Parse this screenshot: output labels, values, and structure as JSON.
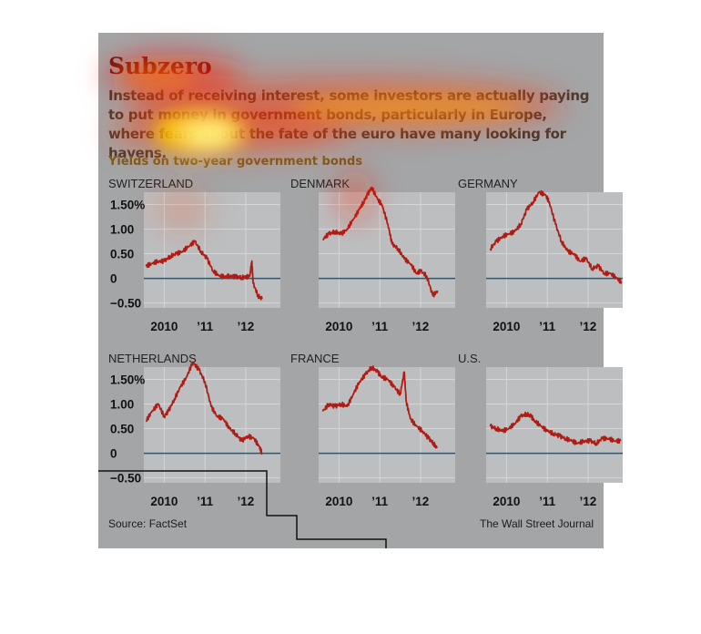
{
  "title": "Subzero",
  "description": "Instead of receiving interest, some investors are actually paying to put money in government bonds, particularly in Europe, where fears about the fate of the euro have many looking for havens.",
  "subtitle": "Yields on two-year government bonds",
  "source": "Source: FactSet",
  "credit": "The Wall Street Journal",
  "colors": {
    "line": "#b01c14",
    "zero": "#1a5f82",
    "panel_bg": "#a3a5a6",
    "plot_bg": "#bcbebf"
  },
  "chart_data": [
    {
      "type": "line",
      "title": "SWITZERLAND",
      "ylim": [
        -0.6,
        1.75
      ],
      "yticks": [
        "1.50%",
        "1.00",
        "0.50",
        "0",
        "−0.50"
      ],
      "yticks_values": [
        1.5,
        1.0,
        0.5,
        0,
        -0.5
      ],
      "xticks": [
        "2010",
        "’11",
        "’12"
      ],
      "xticks_values": [
        2010.0,
        2011.0,
        2012.0
      ],
      "xlim": [
        2009.5,
        2012.85
      ],
      "x": [
        2009.55,
        2009.7,
        2009.85,
        2010.0,
        2010.15,
        2010.3,
        2010.45,
        2010.6,
        2010.75,
        2010.9,
        2011.05,
        2011.2,
        2011.35,
        2011.5,
        2011.6,
        2011.75,
        2011.9,
        2012.0,
        2012.1,
        2012.15,
        2012.18,
        2012.3,
        2012.4
      ],
      "y": [
        0.25,
        0.3,
        0.35,
        0.35,
        0.45,
        0.5,
        0.55,
        0.65,
        0.75,
        0.55,
        0.4,
        0.15,
        0.05,
        0.03,
        0.05,
        0.03,
        0.02,
        0.02,
        0.05,
        0.35,
        -0.1,
        -0.35,
        -0.42
      ]
    },
    {
      "type": "line",
      "title": "DENMARK",
      "ylim": [
        -0.6,
        1.75
      ],
      "yticks": [
        "1.50%",
        "1.00",
        "0.50",
        "0",
        "−0.50"
      ],
      "yticks_values": [
        1.5,
        1.0,
        0.5,
        0,
        -0.5
      ],
      "xticks": [
        "2010",
        "’11",
        "’12"
      ],
      "xticks_values": [
        2010.0,
        2011.0,
        2012.0
      ],
      "xlim": [
        2009.5,
        2012.85
      ],
      "x": [
        2009.6,
        2009.75,
        2009.9,
        2010.05,
        2010.2,
        2010.35,
        2010.5,
        2010.6,
        2010.7,
        2010.8,
        2010.95,
        2011.05,
        2011.2,
        2011.3,
        2011.45,
        2011.6,
        2011.75,
        2011.9,
        2012.0,
        2012.15,
        2012.3,
        2012.42
      ],
      "y": [
        0.8,
        0.9,
        0.95,
        0.9,
        1.0,
        1.2,
        1.4,
        1.55,
        1.7,
        1.85,
        1.6,
        1.5,
        1.1,
        0.7,
        0.6,
        0.4,
        0.3,
        0.1,
        0.15,
        0.05,
        -0.35,
        -0.25
      ]
    },
    {
      "type": "line",
      "title": "GERMANY",
      "ylim": [
        -0.6,
        1.75
      ],
      "yticks": [
        "1.50%",
        "1.00",
        "0.50",
        "0",
        "−0.50"
      ],
      "yticks_values": [
        1.5,
        1.0,
        0.5,
        0,
        -0.5
      ],
      "xticks": [
        "2010",
        "’11",
        "’12"
      ],
      "xticks_values": [
        2010.0,
        2011.0,
        2012.0
      ],
      "xlim": [
        2009.5,
        2012.85
      ],
      "x": [
        2009.6,
        2009.75,
        2009.9,
        2010.05,
        2010.2,
        2010.35,
        2010.5,
        2010.65,
        2010.8,
        2010.95,
        2011.05,
        2011.2,
        2011.35,
        2011.5,
        2011.65,
        2011.8,
        2011.95,
        2012.1,
        2012.25,
        2012.4,
        2012.55,
        2012.7,
        2012.82
      ],
      "y": [
        0.6,
        0.75,
        0.85,
        0.9,
        0.95,
        1.1,
        1.4,
        1.55,
        1.75,
        1.7,
        1.55,
        1.1,
        0.75,
        0.55,
        0.5,
        0.35,
        0.4,
        0.2,
        0.25,
        0.1,
        0.1,
        0.0,
        -0.07
      ]
    },
    {
      "type": "line",
      "title": "NETHERLANDS",
      "ylim": [
        -0.6,
        1.75
      ],
      "yticks": [
        "1.50%",
        "1.00",
        "0.50",
        "0",
        "−0.50"
      ],
      "yticks_values": [
        1.5,
        1.0,
        0.5,
        0,
        -0.5
      ],
      "xticks": [
        "2010",
        "’11",
        "’12"
      ],
      "xticks_values": [
        2010.0,
        2011.0,
        2012.0
      ],
      "xlim": [
        2009.5,
        2012.85
      ],
      "x": [
        2009.55,
        2009.7,
        2009.85,
        2010.0,
        2010.1,
        2010.25,
        2010.4,
        2010.55,
        2010.7,
        2010.85,
        2011.0,
        2011.15,
        2011.3,
        2011.45,
        2011.6,
        2011.75,
        2011.9,
        2012.05,
        2012.2,
        2012.32,
        2012.4
      ],
      "y": [
        0.65,
        0.85,
        1.0,
        0.75,
        0.85,
        1.1,
        1.35,
        1.55,
        1.85,
        1.7,
        1.45,
        0.95,
        0.75,
        0.7,
        0.5,
        0.4,
        0.25,
        0.35,
        0.3,
        0.15,
        0.0
      ]
    },
    {
      "type": "line",
      "title": "FRANCE",
      "ylim": [
        -0.6,
        1.75
      ],
      "yticks": [
        "1.50%",
        "1.00",
        "0.50",
        "0",
        "−0.50"
      ],
      "yticks_values": [
        1.5,
        1.0,
        0.5,
        0,
        -0.5
      ],
      "xticks": [
        "2010",
        "’11",
        "’12"
      ],
      "xticks_values": [
        2010.0,
        2011.0,
        2012.0
      ],
      "xlim": [
        2009.5,
        2012.85
      ],
      "x": [
        2009.6,
        2009.75,
        2009.9,
        2010.05,
        2010.2,
        2010.35,
        2010.5,
        2010.65,
        2010.8,
        2010.95,
        2011.05,
        2011.2,
        2011.35,
        2011.5,
        2011.6,
        2011.65,
        2011.75,
        2011.9,
        2012.05,
        2012.2,
        2012.32,
        2012.4
      ],
      "y": [
        0.85,
        1.0,
        0.95,
        1.0,
        0.95,
        1.2,
        1.45,
        1.6,
        1.75,
        1.65,
        1.55,
        1.5,
        1.35,
        1.2,
        1.65,
        1.05,
        0.7,
        0.55,
        0.45,
        0.3,
        0.2,
        0.1
      ]
    },
    {
      "type": "line",
      "title": "U.S.",
      "ylim": [
        -0.6,
        1.75
      ],
      "yticks": [
        "1.50%",
        "1.00",
        "0.50",
        "0",
        "−0.50"
      ],
      "yticks_values": [
        1.5,
        1.0,
        0.5,
        0,
        -0.5
      ],
      "xticks": [
        "2010",
        "’11",
        "’12"
      ],
      "xticks_values": [
        2010.0,
        2011.0,
        2012.0
      ],
      "xlim": [
        2009.5,
        2012.85
      ],
      "x": [
        2009.6,
        2009.75,
        2009.9,
        2010.05,
        2010.2,
        2010.35,
        2010.5,
        2010.6,
        2010.7,
        2010.85,
        2011.0,
        2011.15,
        2011.3,
        2011.45,
        2011.6,
        2011.75,
        2011.9,
        2012.05,
        2012.2,
        2012.35,
        2012.5,
        2012.65,
        2012.8
      ],
      "y": [
        0.55,
        0.5,
        0.45,
        0.5,
        0.6,
        0.75,
        0.8,
        0.75,
        0.65,
        0.55,
        0.45,
        0.4,
        0.35,
        0.3,
        0.25,
        0.2,
        0.25,
        0.25,
        0.2,
        0.3,
        0.3,
        0.25,
        0.25
      ]
    }
  ]
}
